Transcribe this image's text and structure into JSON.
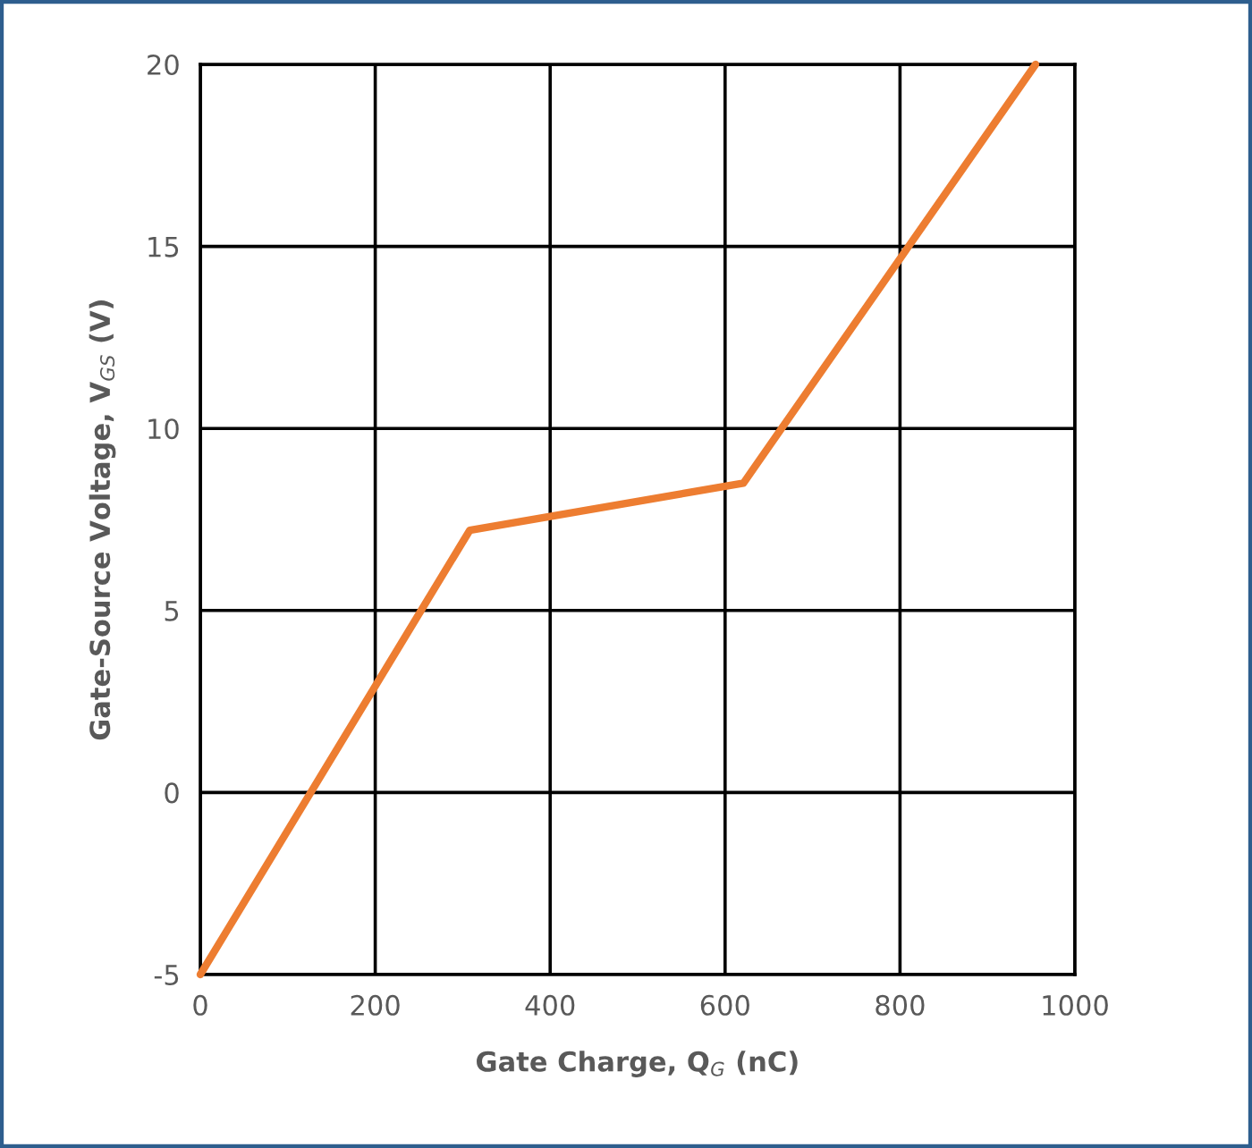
{
  "chart_data": {
    "type": "line",
    "xlabel": "Gate Charge, Q$_{G}$ (nC)",
    "ylabel": "Gate-Source Voltage, V$_{GS}$ (V)",
    "series": [
      {
        "color": "#ed7d31",
        "x": [
          0,
          308,
          621,
          955
        ],
        "values": [
          -5,
          7.2,
          8.5,
          20
        ]
      }
    ],
    "xlim": [
      0,
      1000
    ],
    "xticks": [
      0,
      200,
      400,
      600,
      800,
      1000
    ],
    "ylim": [
      -5,
      20
    ],
    "yticks": [
      -5,
      0,
      5,
      10,
      15,
      20
    ],
    "grid": true,
    "marker": "none",
    "line_style": "solid"
  }
}
